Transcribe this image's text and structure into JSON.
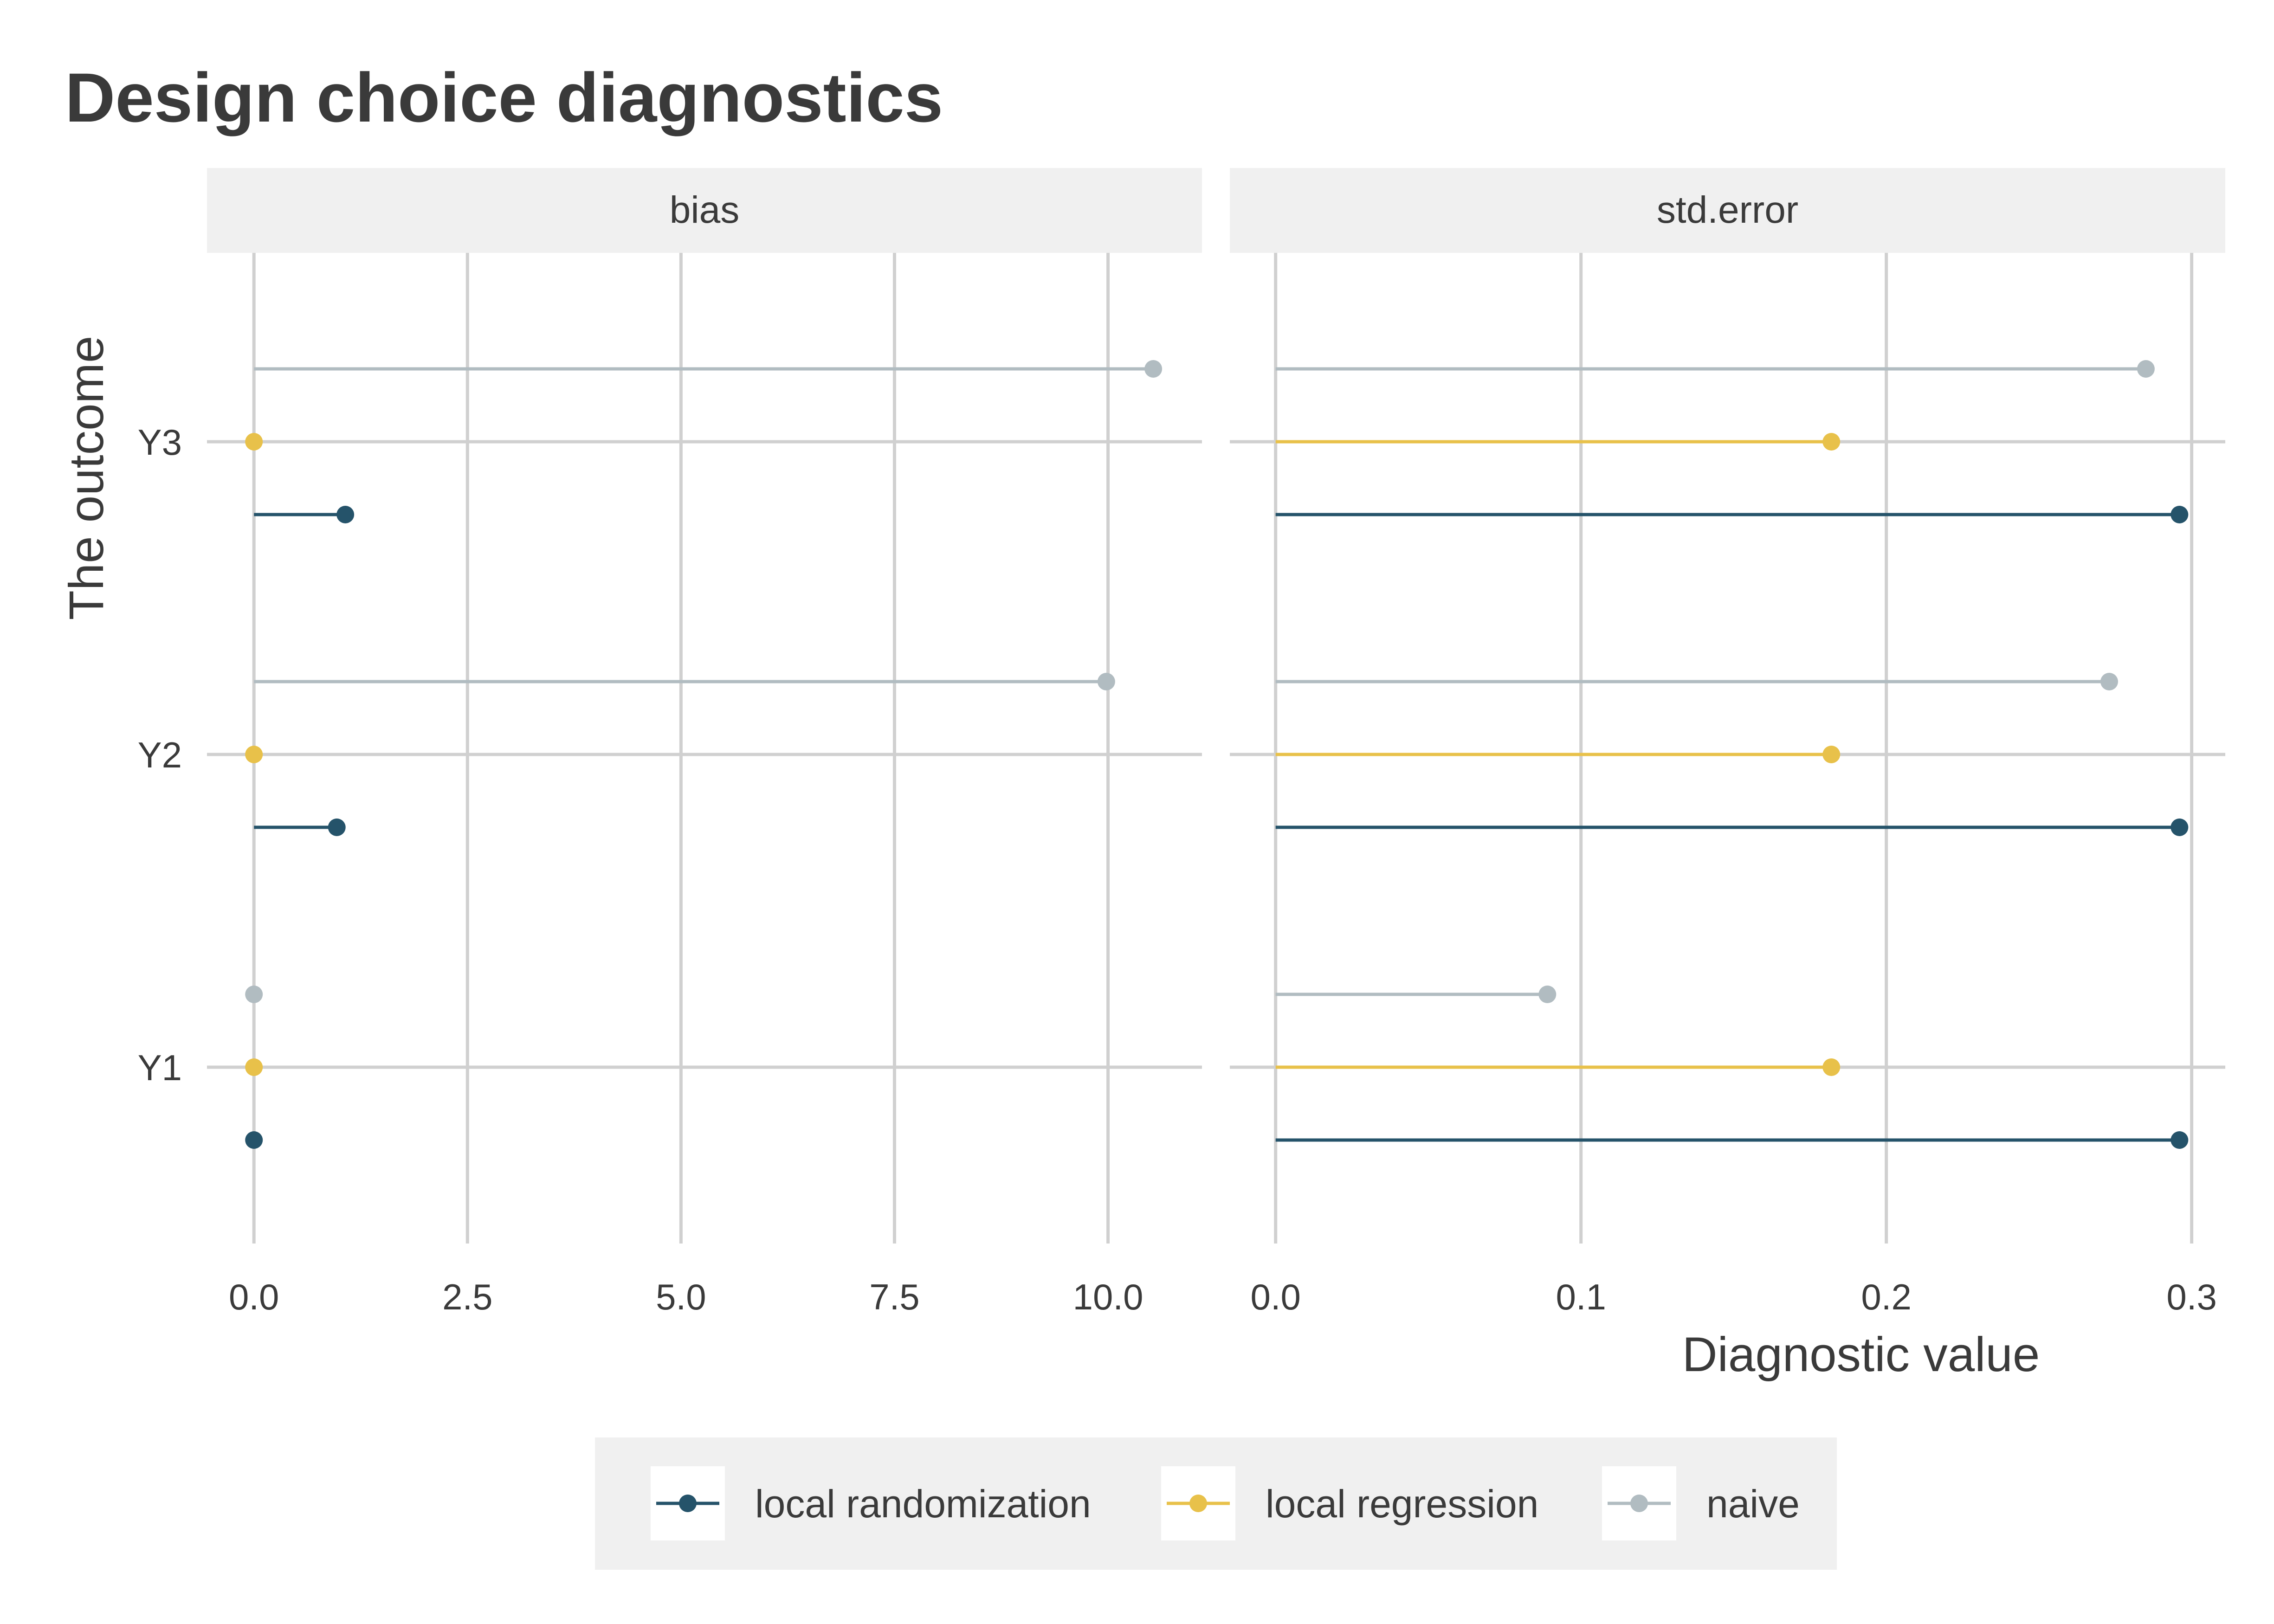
{
  "chart_data": {
    "type": "lollipop",
    "title": "Design choice diagnostics",
    "xlabel": "Diagnostic value",
    "ylabel": "The outcome",
    "categories": [
      "Y1",
      "Y2",
      "Y3"
    ],
    "legend": {
      "position": "bottom"
    },
    "series_styles": [
      {
        "name": "local randomization",
        "color": "#25536a"
      },
      {
        "name": "local regression",
        "color": "#e8c14a"
      },
      {
        "name": "naive",
        "color": "#b1bcc1"
      }
    ],
    "panels": [
      {
        "label": "bias",
        "xlim": [
          -0.55,
          11.1
        ],
        "ticks": [
          0.0,
          2.5,
          5.0,
          7.5,
          10.0
        ],
        "tick_labels": [
          "0.0",
          "2.5",
          "5.0",
          "7.5",
          "10.0"
        ],
        "series": [
          {
            "name": "local randomization",
            "values": [
              0.0,
              0.97,
              1.07
            ]
          },
          {
            "name": "local regression",
            "values": [
              0.0,
              0.0,
              0.0
            ]
          },
          {
            "name": "naive",
            "values": [
              0.0,
              9.98,
              10.53
            ]
          }
        ]
      },
      {
        "label": "std.error",
        "xlim": [
          -0.015,
          0.311
        ],
        "ticks": [
          0.0,
          0.1,
          0.2,
          0.3
        ],
        "tick_labels": [
          "0.0",
          "0.1",
          "0.2",
          "0.3"
        ],
        "series": [
          {
            "name": "local randomization",
            "values": [
              0.296,
              0.296,
              0.296
            ]
          },
          {
            "name": "local regression",
            "values": [
              0.182,
              0.182,
              0.182
            ]
          },
          {
            "name": "naive",
            "values": [
              0.089,
              0.273,
              0.285
            ]
          }
        ]
      }
    ]
  }
}
